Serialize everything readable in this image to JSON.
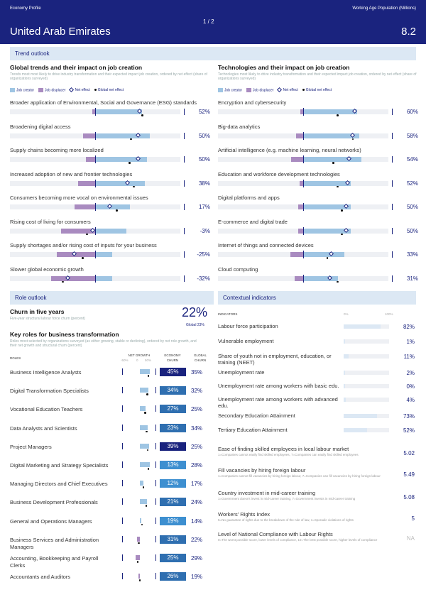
{
  "header": {
    "economy_profile": "Economy Profile",
    "page": "1 / 2",
    "country": "United Arab Emirates",
    "wap_label": "Working Age Population (Millions)",
    "wap_value": "8.2"
  },
  "sections": {
    "trend_outlook": "Trend outlook",
    "role_outlook": "Role outlook",
    "contextual": "Contextual indicators"
  },
  "global_trends": {
    "title": "Global trends and their impact on job creation",
    "subtitle": "Trends most most likely to drive industry transformation and their expected impact job creation, ordered by net effect (share of organizations surveyed)"
  },
  "technologies": {
    "title": "Technologies and their impact on job creation",
    "subtitle": "Technologies most likely to drive industry transformation and their expected impact job creation, ordered by net effect (share of organizations surveyed)"
  },
  "legend": {
    "creator": "Job creator",
    "displacer": "Job displacer",
    "net": "Net effect",
    "global": "Global net effect"
  },
  "colors": {
    "navy": "#1a237e",
    "creator": "#9fc5e3",
    "displacer": "#a98bc0",
    "global_dot": "#111111"
  },
  "trends": [
    {
      "label": "Broader application of Environmental, Social and Governance (ESG) standards",
      "value": "52%",
      "disp": 0.03,
      "creat": 0.55,
      "net": 0.52,
      "glob": 0.55
    },
    {
      "label": "Broadening digital access",
      "value": "50%",
      "disp": 0.14,
      "creat": 0.64,
      "net": 0.5,
      "glob": 0.42
    },
    {
      "label": "Supply chains becoming more localized",
      "value": "50%",
      "disp": 0.11,
      "creat": 0.61,
      "net": 0.5,
      "glob": 0.4
    },
    {
      "label": "Increased adoption of new and frontier technologies",
      "value": "38%",
      "disp": 0.2,
      "creat": 0.58,
      "net": 0.38,
      "glob": 0.45
    },
    {
      "label": "Consumers becoming more vocal on environmental issues",
      "value": "17%",
      "disp": 0.24,
      "creat": 0.41,
      "net": 0.17,
      "glob": 0.25
    },
    {
      "label": "Rising cost of living for consumers",
      "value": "-3%",
      "disp": 0.4,
      "creat": 0.37,
      "net": -0.03,
      "glob": -0.1
    },
    {
      "label": "Supply shortages and/or rising cost of inputs for your business",
      "value": "-25%",
      "disp": 0.45,
      "creat": 0.2,
      "net": -0.25,
      "glob": -0.15
    },
    {
      "label": "Slower global economic growth",
      "value": "-32%",
      "disp": 0.52,
      "creat": 0.2,
      "net": -0.32,
      "glob": -0.38
    }
  ],
  "techs": [
    {
      "label": "Encryption and cybersecurity",
      "value": "60%",
      "disp": 0.03,
      "creat": 0.63,
      "net": 0.6,
      "glob": 0.4
    },
    {
      "label": "Big-data analytics",
      "value": "58%",
      "disp": 0.08,
      "creat": 0.66,
      "net": 0.58,
      "glob": 0.58
    },
    {
      "label": "Artificial intelligence (e.g. machine learning, neural networks)",
      "value": "54%",
      "disp": 0.14,
      "creat": 0.68,
      "net": 0.54,
      "glob": 0.35
    },
    {
      "label": "Education and workforce development technologies",
      "value": "52%",
      "disp": 0.04,
      "creat": 0.56,
      "net": 0.52,
      "glob": 0.4
    },
    {
      "label": "Digital platforms and apps",
      "value": "50%",
      "disp": 0.06,
      "creat": 0.56,
      "net": 0.5,
      "glob": 0.45
    },
    {
      "label": "E-commerce and digital trade",
      "value": "50%",
      "disp": 0.06,
      "creat": 0.56,
      "net": 0.5,
      "glob": 0.45
    },
    {
      "label": "Internet of things and connected devices",
      "value": "33%",
      "disp": 0.15,
      "creat": 0.48,
      "net": 0.33,
      "glob": 0.28
    },
    {
      "label": "Cloud computing",
      "value": "31%",
      "disp": 0.1,
      "creat": 0.41,
      "net": 0.31,
      "glob": 0.4
    }
  ],
  "churn": {
    "title": "Churn in five years",
    "subtitle": "Five-year structural labour force churn (percent)",
    "value": "22%",
    "global": "Global 23%"
  },
  "roles_header": {
    "title": "Key roles for business transformation",
    "subtitle": "Roles most selected by organizations surveyed (as either growing, stable or declining), ordered by net role growth, and their net growth and structural churn (percent)",
    "roles": "ROLES",
    "net_growth": "NET GROWTH",
    "economy": "ECONOMY",
    "global": "GLOBAL",
    "churn": "CHURN",
    "s1": "-50%",
    "s2": "0",
    "s3": "50%"
  },
  "roles": [
    {
      "label": "Business Intelligence Analysts",
      "net": 0.35,
      "econ": "45%",
      "glob": "35%"
    },
    {
      "label": "Digital Transformation Specialists",
      "net": 0.3,
      "econ": "34%",
      "glob": "32%"
    },
    {
      "label": "Vocational Education Teachers",
      "net": 0.2,
      "econ": "27%",
      "glob": "25%"
    },
    {
      "label": "Data Analysts and Scientists",
      "net": 0.28,
      "econ": "23%",
      "glob": "34%"
    },
    {
      "label": "Project Managers",
      "net": 0.32,
      "econ": "39%",
      "glob": "25%"
    },
    {
      "label": "Digital Marketing and Strategy Specialists",
      "net": 0.35,
      "econ": "13%",
      "glob": "28%"
    },
    {
      "label": "Managing Directors and Chief Executives",
      "net": 0.12,
      "econ": "12%",
      "glob": "17%"
    },
    {
      "label": "Business Development Professionals",
      "net": 0.25,
      "econ": "21%",
      "glob": "24%"
    },
    {
      "label": "General and Operations Managers",
      "net": 0.05,
      "econ": "19%",
      "glob": "14%"
    },
    {
      "label": "Business Services and Administration Managers",
      "net": -0.1,
      "econ": "31%",
      "glob": "22%"
    },
    {
      "label": "Accounting, Bookkeeping and Payroll Clerks",
      "net": -0.15,
      "econ": "25%",
      "glob": "29%"
    },
    {
      "label": "Accountants and Auditors",
      "net": -0.05,
      "econ": "26%",
      "glob": "19%"
    }
  ],
  "indicators_header": {
    "title": "INDICATORS",
    "s0": "0%",
    "s100": "100%"
  },
  "indicators": [
    {
      "label": "Labour force participation",
      "value": "82%",
      "frac": 0.82
    },
    {
      "label": "Vulnerable employment",
      "value": "1%",
      "frac": 0.01
    },
    {
      "label": "Share of youth not in employment, education, or training (NEET)",
      "value": "11%",
      "frac": 0.11
    },
    {
      "label": "Unemployment rate",
      "value": "2%",
      "frac": 0.02
    },
    {
      "label": "Unemployment rate among workers with basic edu.",
      "value": "0%",
      "frac": 0.0
    },
    {
      "label": "Unemployment rate among workers with advanced edu.",
      "value": "4%",
      "frac": 0.04
    },
    {
      "label": "Secondary Education Attainment",
      "value": "73%",
      "frac": 0.73
    },
    {
      "label": "Tertiary Education Attainment",
      "value": "52%",
      "frac": 0.52
    }
  ],
  "scores": [
    {
      "label": "Ease of finding skilled employees in local labour market",
      "note": "1=Companies cannot easily find skilled employees, 7=Companies can easily find skilled employees",
      "value": "5.02"
    },
    {
      "label": "Fill vacancies by hiring foreign labour",
      "note": "1=Companies cannot fill vacancies by hiring foreign labour, 7=Companies can fill vacancies by hiring foreign labour",
      "value": "5.49"
    },
    {
      "label": "Country investment in mid-career training",
      "note": "1=Government doesn't invest in mid-career training, 7=Government invests in mid-career training",
      "value": "5.08"
    },
    {
      "label": "Workers' Rights Index",
      "note": "5=No guarantee of rights due to the breakdown of the rule of law, 1=Sporadic violations of rights",
      "value": "5"
    },
    {
      "label": "Level of National Compliance with Labour Rights",
      "note": "0=The worst possible score, lower levels of compliance, 10=The best possible score, higher levels of compliance",
      "value": "NA"
    }
  ]
}
